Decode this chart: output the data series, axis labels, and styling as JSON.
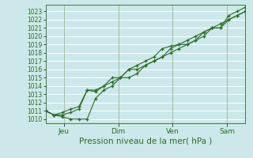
{
  "xlabel": "Pression niveau de la mer( hPa )",
  "bg_color": "#cce8ea",
  "grid_color": "#ffffff",
  "line_color": "#2d6a2d",
  "ylim": [
    1009.5,
    1023.8
  ],
  "yticks": [
    1010,
    1011,
    1012,
    1013,
    1014,
    1015,
    1016,
    1017,
    1018,
    1019,
    1020,
    1021,
    1022,
    1023
  ],
  "xtick_labels": [
    "Jeu",
    "Dim",
    "Ven",
    "Sam"
  ],
  "xtick_positions": [
    1,
    4,
    7,
    10
  ],
  "xlim": [
    0,
    11
  ],
  "line_main": [
    1011.0,
    1010.5,
    1010.5,
    1010.8,
    1011.2,
    1013.5,
    1013.3,
    1014.0,
    1014.5,
    1015.0,
    1016.0,
    1016.0,
    1016.5,
    1017.0,
    1017.5,
    1018.5,
    1019.0,
    1019.0,
    1019.5,
    1020.0,
    1021.0,
    1021.0,
    1022.0,
    1022.5,
    1023.0
  ],
  "line_low": [
    1011.0,
    1010.5,
    1010.3,
    1010.0,
    1010.0,
    1010.0,
    1012.5,
    1013.5,
    1014.0,
    1015.0,
    1015.0,
    1015.5,
    1016.5,
    1017.0,
    1017.5,
    1018.0,
    1018.5,
    1019.0,
    1019.5,
    1020.5,
    1021.0,
    1021.5,
    1022.0,
    1022.5,
    1023.0
  ],
  "line_high": [
    1011.0,
    1010.5,
    1010.8,
    1011.2,
    1011.5,
    1013.5,
    1013.5,
    1014.0,
    1015.0,
    1015.0,
    1016.0,
    1016.5,
    1017.0,
    1017.5,
    1018.5,
    1018.8,
    1019.0,
    1019.5,
    1020.0,
    1020.5,
    1021.0,
    1021.0,
    1022.5,
    1023.0,
    1023.5
  ],
  "xlabel_fontsize": 7.5,
  "ytick_fontsize": 5.5,
  "xtick_fontsize": 6.5
}
